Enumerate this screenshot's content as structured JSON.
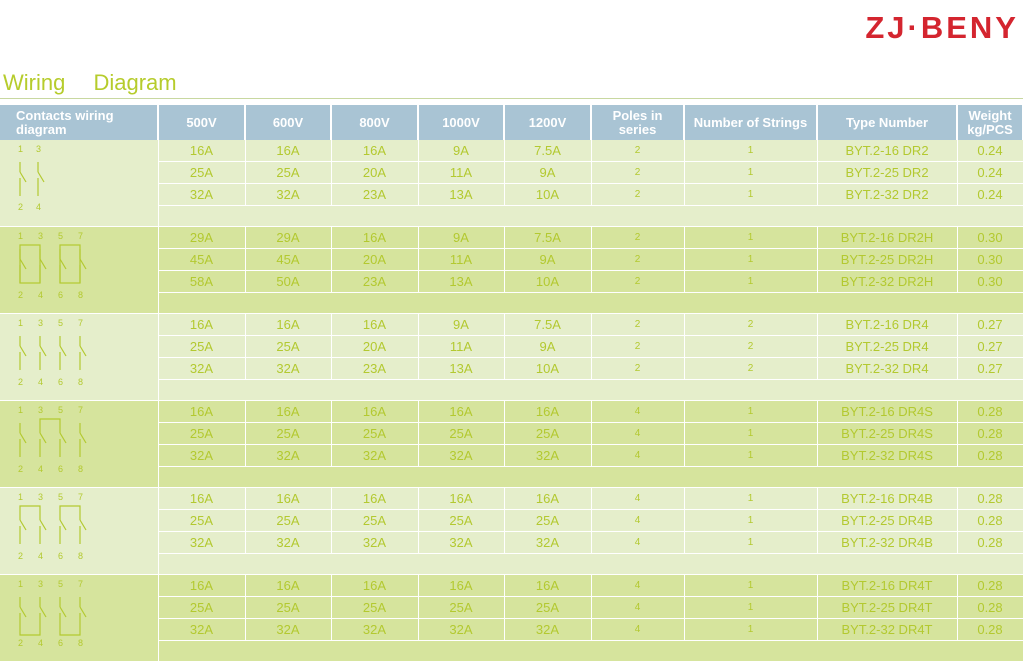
{
  "brand": "ZJ·BENY",
  "title": "Wiring Diagram",
  "headers": [
    "Contacts wiring diagram",
    "500V",
    "600V",
    "800V",
    "1000V",
    "1200V",
    "Poles in series",
    "Number of Strings",
    "Type Number",
    "Weight kg/PCS"
  ],
  "groups": [
    {
      "diagram": "dr2",
      "terminal_labels": [
        "1",
        "3",
        "2",
        "4"
      ],
      "rows": [
        [
          "16A",
          "16A",
          "16A",
          "9A",
          "7.5A",
          "2",
          "1",
          "BYT.2-16 DR2",
          "0.24"
        ],
        [
          "25A",
          "25A",
          "20A",
          "11A",
          "9A",
          "2",
          "1",
          "BYT.2-25 DR2",
          "0.24"
        ],
        [
          "32A",
          "32A",
          "23A",
          "13A",
          "10A",
          "2",
          "1",
          "BYT.2-32 DR2",
          "0.24"
        ]
      ]
    },
    {
      "diagram": "dr2h",
      "terminal_labels": [
        "1",
        "3",
        "5",
        "7",
        "2",
        "4",
        "6",
        "8"
      ],
      "rows": [
        [
          "29A",
          "29A",
          "16A",
          "9A",
          "7.5A",
          "2",
          "1",
          "BYT.2-16 DR2H",
          "0.30"
        ],
        [
          "45A",
          "45A",
          "20A",
          "11A",
          "9A",
          "2",
          "1",
          "BYT.2-25 DR2H",
          "0.30"
        ],
        [
          "58A",
          "50A",
          "23A",
          "13A",
          "10A",
          "2",
          "1",
          "BYT.2-32 DR2H",
          "0.30"
        ]
      ]
    },
    {
      "diagram": "dr4",
      "terminal_labels": [
        "1",
        "3",
        "5",
        "7",
        "2",
        "4",
        "6",
        "8"
      ],
      "rows": [
        [
          "16A",
          "16A",
          "16A",
          "9A",
          "7.5A",
          "2",
          "2",
          "BYT.2-16 DR4",
          "0.27"
        ],
        [
          "25A",
          "25A",
          "20A",
          "11A",
          "9A",
          "2",
          "2",
          "BYT.2-25 DR4",
          "0.27"
        ],
        [
          "32A",
          "32A",
          "23A",
          "13A",
          "10A",
          "2",
          "2",
          "BYT.2-32 DR4",
          "0.27"
        ]
      ]
    },
    {
      "diagram": "dr4s",
      "terminal_labels": [
        "1",
        "3",
        "5",
        "7",
        "2",
        "4",
        "6",
        "8"
      ],
      "rows": [
        [
          "16A",
          "16A",
          "16A",
          "16A",
          "16A",
          "4",
          "1",
          "BYT.2-16 DR4S",
          "0.28"
        ],
        [
          "25A",
          "25A",
          "25A",
          "25A",
          "25A",
          "4",
          "1",
          "BYT.2-25 DR4S",
          "0.28"
        ],
        [
          "32A",
          "32A",
          "32A",
          "32A",
          "32A",
          "4",
          "1",
          "BYT.2-32 DR4S",
          "0.28"
        ]
      ]
    },
    {
      "diagram": "dr4b",
      "terminal_labels": [
        "1",
        "3",
        "5",
        "7",
        "2",
        "4",
        "6",
        "8"
      ],
      "rows": [
        [
          "16A",
          "16A",
          "16A",
          "16A",
          "16A",
          "4",
          "1",
          "BYT.2-16 DR4B",
          "0.28"
        ],
        [
          "25A",
          "25A",
          "25A",
          "25A",
          "25A",
          "4",
          "1",
          "BYT.2-25 DR4B",
          "0.28"
        ],
        [
          "32A",
          "32A",
          "32A",
          "32A",
          "32A",
          "4",
          "1",
          "BYT.2-32 DR4B",
          "0.28"
        ]
      ]
    },
    {
      "diagram": "dr4t",
      "terminal_labels": [
        "1",
        "3",
        "5",
        "7",
        "2",
        "4",
        "6",
        "8"
      ],
      "rows": [
        [
          "16A",
          "16A",
          "16A",
          "16A",
          "16A",
          "4",
          "1",
          "BYT.2-16 DR4T",
          "0.28"
        ],
        [
          "25A",
          "25A",
          "25A",
          "25A",
          "25A",
          "4",
          "1",
          "BYT.2-25 DR4T",
          "0.28"
        ],
        [
          "32A",
          "32A",
          "32A",
          "32A",
          "32A",
          "4",
          "1",
          "BYT.2-32 DR4T",
          "0.28"
        ]
      ]
    }
  ],
  "colors": {
    "brand_red": "#d4252f",
    "accent_green": "#b6cc2c",
    "header_blue": "#a9c4d4",
    "row_light": "#e5eecb",
    "row_dark": "#d6e49d"
  }
}
